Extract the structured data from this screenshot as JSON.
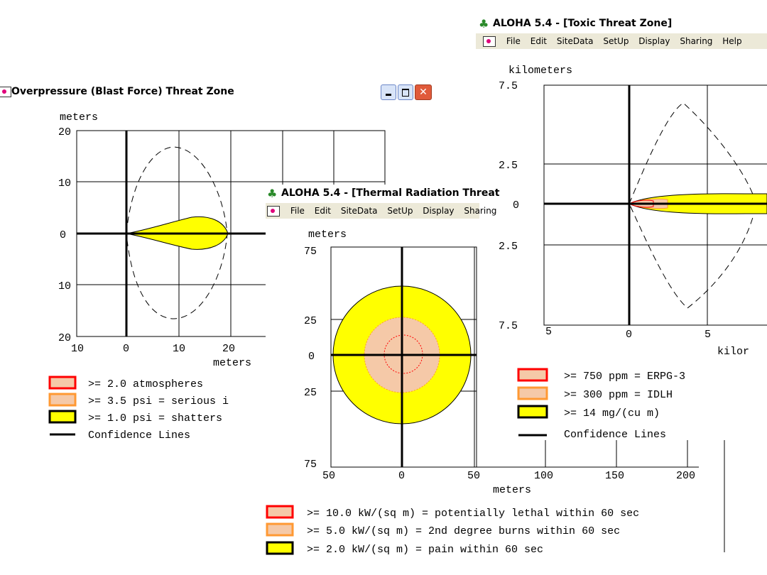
{
  "blast": {
    "title": "Overpressure (Blast Force) Threat Zone",
    "yunit": "meters",
    "xunit": "meters",
    "yticks": [
      "20",
      "10",
      "0",
      "10",
      "20"
    ],
    "xticks": [
      "10",
      "0",
      "10",
      "20"
    ],
    "legend": [
      {
        "text": ">= 2.0 atmospheres",
        "swatch": "#ff0000"
      },
      {
        "text": ">= 3.5 psi = serious i",
        "swatch": "#ff9933"
      },
      {
        "text": ">= 1.0 psi = shatters",
        "swatch": "#000000"
      },
      {
        "text": "Confidence Lines",
        "swatch": "line"
      }
    ]
  },
  "thermal": {
    "title": "ALOHA 5.4 - [Thermal Radiation Threat",
    "menu": [
      "File",
      "Edit",
      "SiteData",
      "SetUp",
      "Display",
      "Sharing"
    ],
    "yunit": "meters",
    "xunit": "meters",
    "yticks": [
      "75",
      "25",
      "0",
      "25",
      "75"
    ],
    "xticks": [
      "50",
      "0",
      "50",
      "100",
      "150",
      "200"
    ],
    "legend": [
      {
        "text": ">= 10.0 kW/(sq m) = potentially lethal within 60 sec"
      },
      {
        "text": ">= 5.0 kW/(sq m) = 2nd degree burns within 60 sec"
      },
      {
        "text": ">= 2.0 kW/(sq m) = pain within 60 sec"
      }
    ]
  },
  "toxic": {
    "title": "ALOHA 5.4 - [Toxic Threat Zone]",
    "menu": [
      "File",
      "Edit",
      "SiteData",
      "SetUp",
      "Display",
      "Sharing",
      "Help"
    ],
    "yunit": "kilometers",
    "xunit": "kilor",
    "yticks": [
      "7.5",
      "2.5",
      "0",
      "2.5",
      "7.5"
    ],
    "xticks": [
      "5",
      "0",
      "5"
    ],
    "legend": [
      {
        "text": ">= 750 ppm = ERPG-3"
      },
      {
        "text": ">= 300 ppm = IDLH"
      },
      {
        "text": ">= 14 mg/(cu m)"
      },
      {
        "text": "Confidence Lines"
      }
    ]
  },
  "colors": {
    "yellow": "#ffff00",
    "red": "#ff0000",
    "orange": "#ff9933",
    "hatch": "#f5c9a8"
  }
}
